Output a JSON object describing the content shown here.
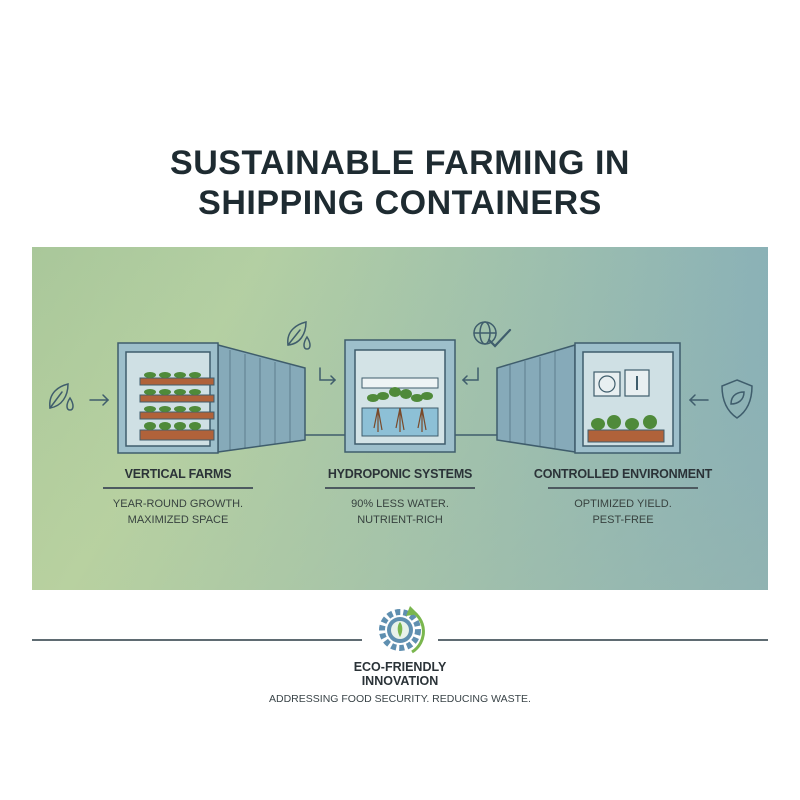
{
  "title": {
    "line1": "SUSTAINABLE FARMING IN",
    "line2": "SHIPPING CONTAINERS"
  },
  "features": [
    {
      "title": "VERTICAL FARMS",
      "line1": "YEAR-ROUND GROWTH.",
      "line2": "MAXIMIZED SPACE",
      "icon": "leaf-water-drop-icon"
    },
    {
      "title": "HYDROPONIC SYSTEMS",
      "line1": "90% LESS WATER.",
      "line2": "NUTRIENT-RICH",
      "icon": "globe-check-icon"
    },
    {
      "title": "CONTROLLED ENVIRONMENT",
      "line1": "OPTIMIZED YIELD.",
      "line2": "PEST-FREE",
      "icon": "shield-leaf-icon"
    }
  ],
  "footer": {
    "title_line1": "ECO-FRIENDLY",
    "title_line2": "INNOVATION",
    "subtitle": "ADDRESSING FOOD SECURITY. REDUCING WASTE.",
    "icon": "gear-leaf-recycle-icon"
  },
  "colors": {
    "container": "#8fb3c2",
    "container_stroke": "#3f5d6c",
    "plant": "#4f8a3a",
    "planter": "#b0623a",
    "accent_green": "#7ab64e",
    "accent_blue": "#5f8fb0"
  }
}
